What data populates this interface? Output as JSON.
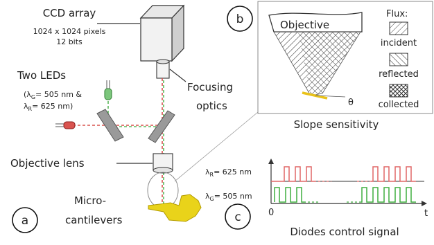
{
  "colors": {
    "red_beam": "#d9534f",
    "green_beam": "#5cb85c",
    "red_signal": "#e06666",
    "green_signal": "#3fae3f",
    "cantilever": "#e9d31a",
    "mirror": "#9a9a9a",
    "line": "#333333"
  },
  "labels": {
    "ccd_title": "CCD array",
    "ccd_line1": "1024 x 1024 pixels",
    "ccd_line2": "12 bits",
    "leds_title": "Two LEDs",
    "leds_line1a": "(λ",
    "leds_line1b": "G",
    "leds_line1c": "= 505 nm &",
    "leds_line2a": "λ",
    "leds_line2b": "R",
    "leds_line2c": "= 625 nm)",
    "focusing_line1": "Focusing",
    "focusing_line2": "optics",
    "objective_lens": "Objective lens",
    "micro_line1": "Micro-",
    "micro_line2": "cantilevers",
    "panel_a": "a",
    "panel_b": "b",
    "panel_c": "c"
  },
  "panel_b": {
    "objective": "Objective",
    "flux_title": "Flux:",
    "flux_items": [
      "incident",
      "reflected",
      "collected"
    ],
    "theta": "θ",
    "caption": "Slope sensitivity"
  },
  "panel_c": {
    "lambda_r_a": "λ",
    "lambda_r_b": "R",
    "lambda_r_c": "= 625 nm",
    "lambda_g_a": "λ",
    "lambda_g_b": "G",
    "lambda_g_c": "= 505 nm",
    "origin": "0",
    "t_label": "t",
    "caption": "Diodes control signal"
  }
}
